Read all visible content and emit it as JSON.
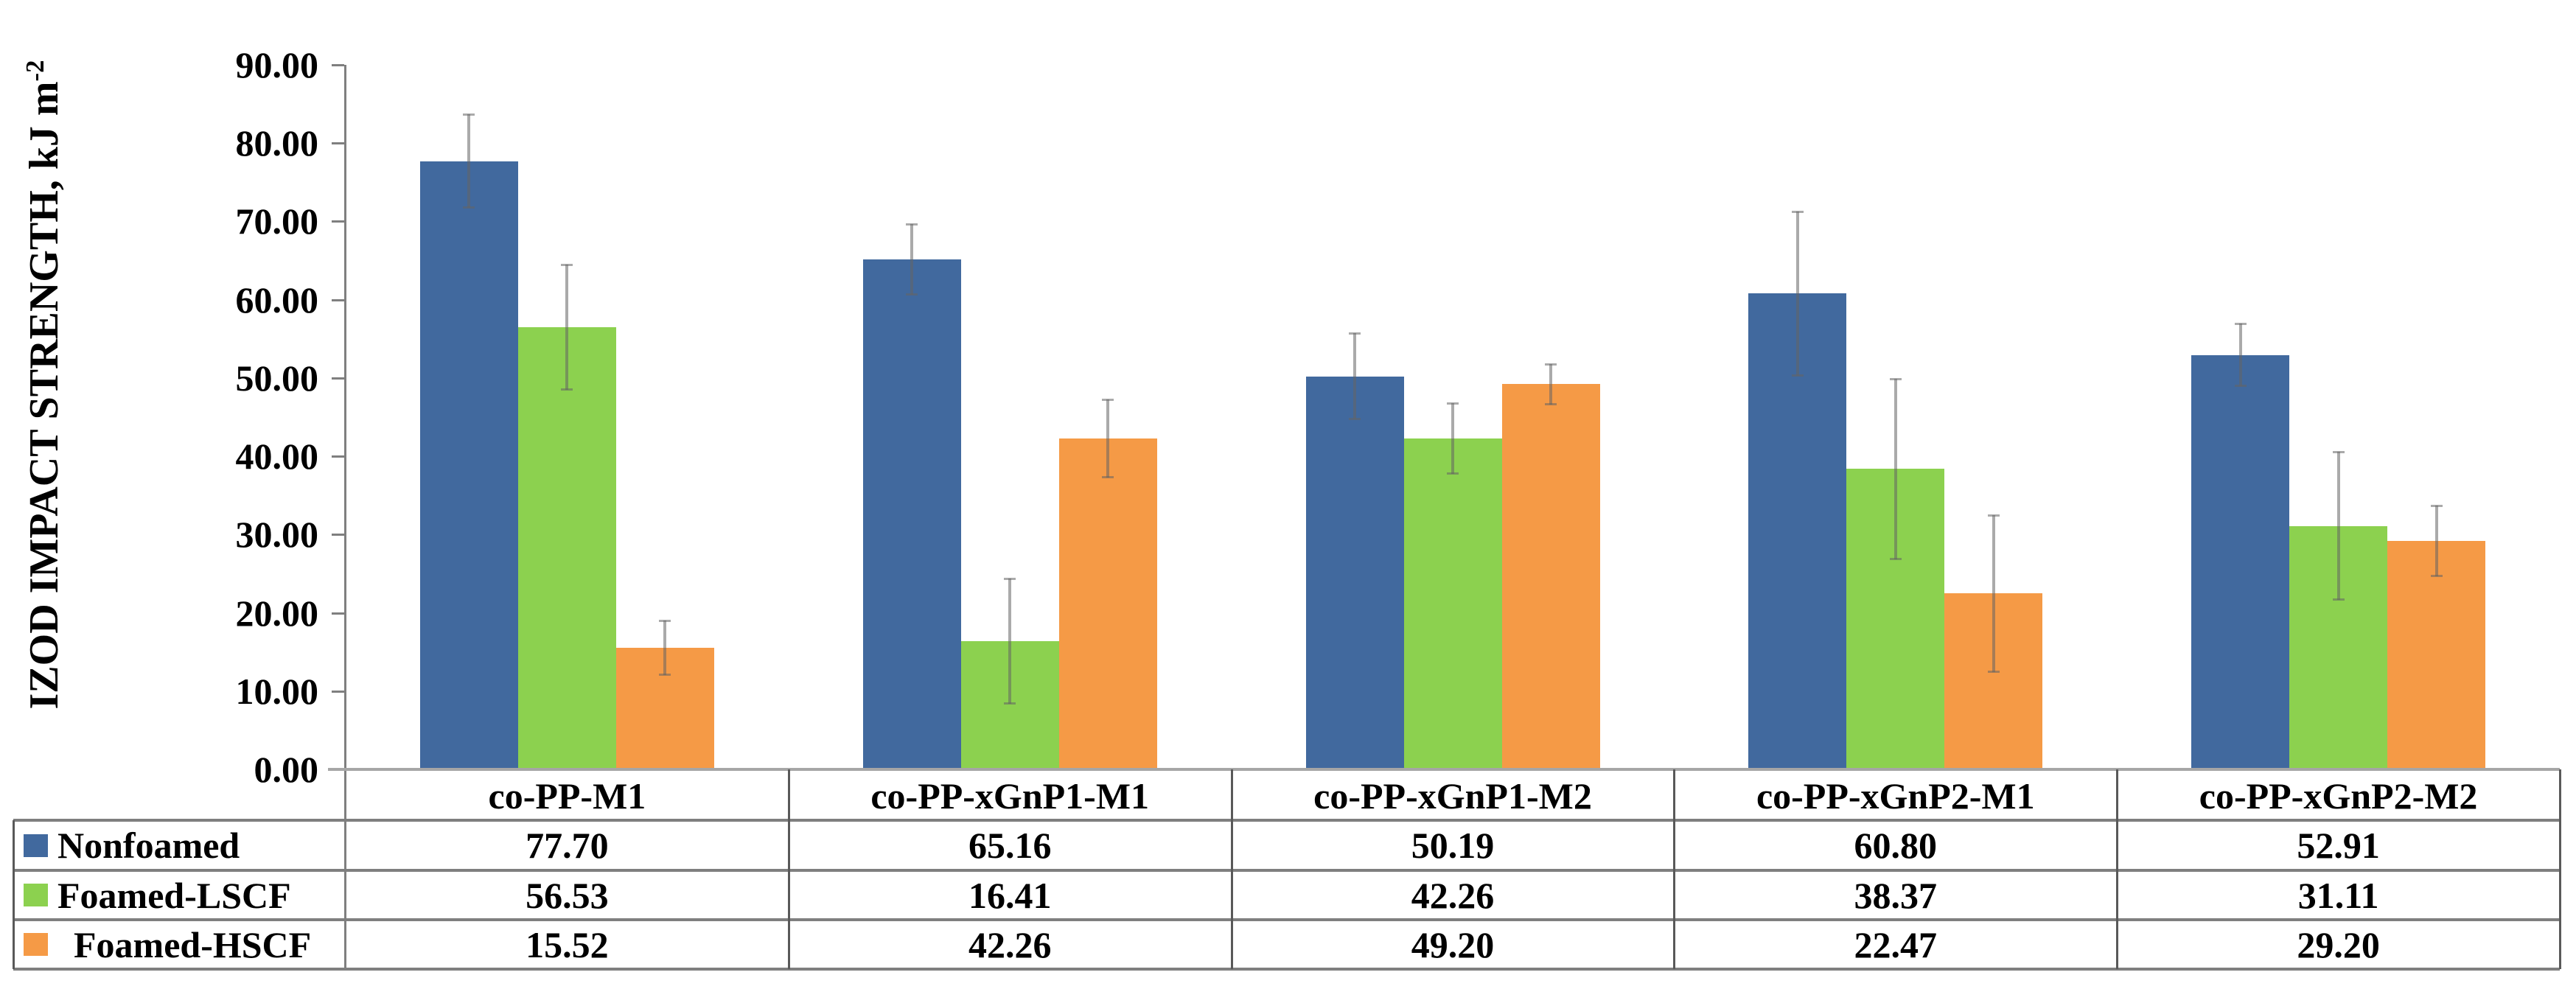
{
  "chart_data": {
    "type": "bar",
    "title": "",
    "ylabel_main": "IZOD IMPACT STRENGTH, kJ m",
    "ylabel_sup": "-2",
    "xlabel": "",
    "ylim": [
      0,
      90
    ],
    "ytick_step": 10,
    "ytick_labels": [
      "90.00",
      "80.00",
      "70.00",
      "60.00",
      "50.00",
      "40.00",
      "30.00",
      "20.00",
      "10.00",
      "0.00"
    ],
    "grid": false,
    "legend_position": "table-left-column",
    "categories": [
      "co-PP-M1",
      "co-PP-xGnP1-M1",
      "co-PP-xGnP1-M2",
      "co-PP-xGnP2-M1",
      "co-PP-xGnP2-M2"
    ],
    "series": [
      {
        "name": "Nonfoamed",
        "color": "#41699E",
        "values": [
          77.7,
          65.16,
          50.19,
          60.8,
          52.91
        ],
        "value_labels": [
          "77.70",
          "65.16",
          "50.19",
          "60.80",
          "52.91"
        ],
        "errors": [
          6.0,
          4.5,
          5.5,
          10.5,
          4.0
        ]
      },
      {
        "name": "Foamed-LSCF",
        "color": "#8CD14F",
        "values": [
          56.53,
          16.41,
          42.26,
          38.37,
          31.11
        ],
        "value_labels": [
          "56.53",
          "16.41",
          "42.26",
          "38.37",
          "31.11"
        ],
        "errors": [
          8.0,
          8.0,
          4.5,
          11.5,
          9.5
        ]
      },
      {
        "name": "Foamed-HSCF",
        "color": "#F59A46",
        "values": [
          15.52,
          42.26,
          49.2,
          22.47,
          29.2
        ],
        "value_labels": [
          "15.52",
          "42.26",
          "49.20",
          "22.47",
          "29.20"
        ],
        "errors": [
          3.5,
          5.0,
          2.6,
          10.0,
          4.5
        ]
      }
    ],
    "colors": {
      "axis": "#7f7f7f",
      "baseline": "#a6a6a6",
      "table_border_h": "#7f7f7f",
      "table_border_v": "#595959",
      "error_bar": "rgba(100,100,100,0.55)"
    }
  }
}
